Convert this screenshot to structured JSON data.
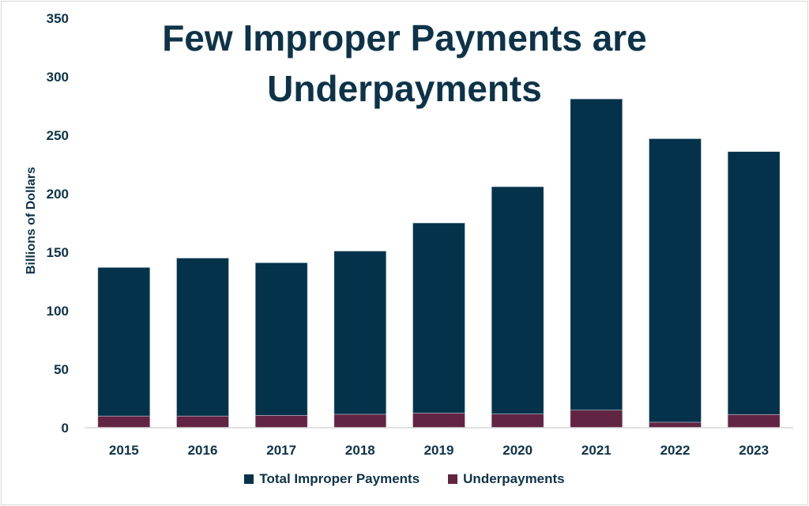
{
  "chart_data": {
    "type": "bar",
    "title": "Few Improper Payments are Underpayments",
    "title_lines": [
      "Few Improper Payments are",
      "Underpayments"
    ],
    "xlabel": "",
    "ylabel": "Billions of Dollars",
    "ylim": [
      0,
      350
    ],
    "yticks": [
      0,
      50,
      100,
      150,
      200,
      250,
      300,
      350
    ],
    "grid": false,
    "legend_placement": "bottom",
    "categories": [
      "2015",
      "2016",
      "2017",
      "2018",
      "2019",
      "2020",
      "2021",
      "2022",
      "2023"
    ],
    "series": [
      {
        "name": "Total Improper Payments",
        "color": "#03324a",
        "values": [
          137,
          145,
          141,
          151,
          175,
          206,
          281,
          247,
          236
        ]
      },
      {
        "name": "Underpayments",
        "color": "#612442",
        "values": [
          10,
          10,
          10.5,
          11.5,
          12.5,
          11.7,
          15,
          4.7,
          11.3
        ]
      }
    ]
  }
}
